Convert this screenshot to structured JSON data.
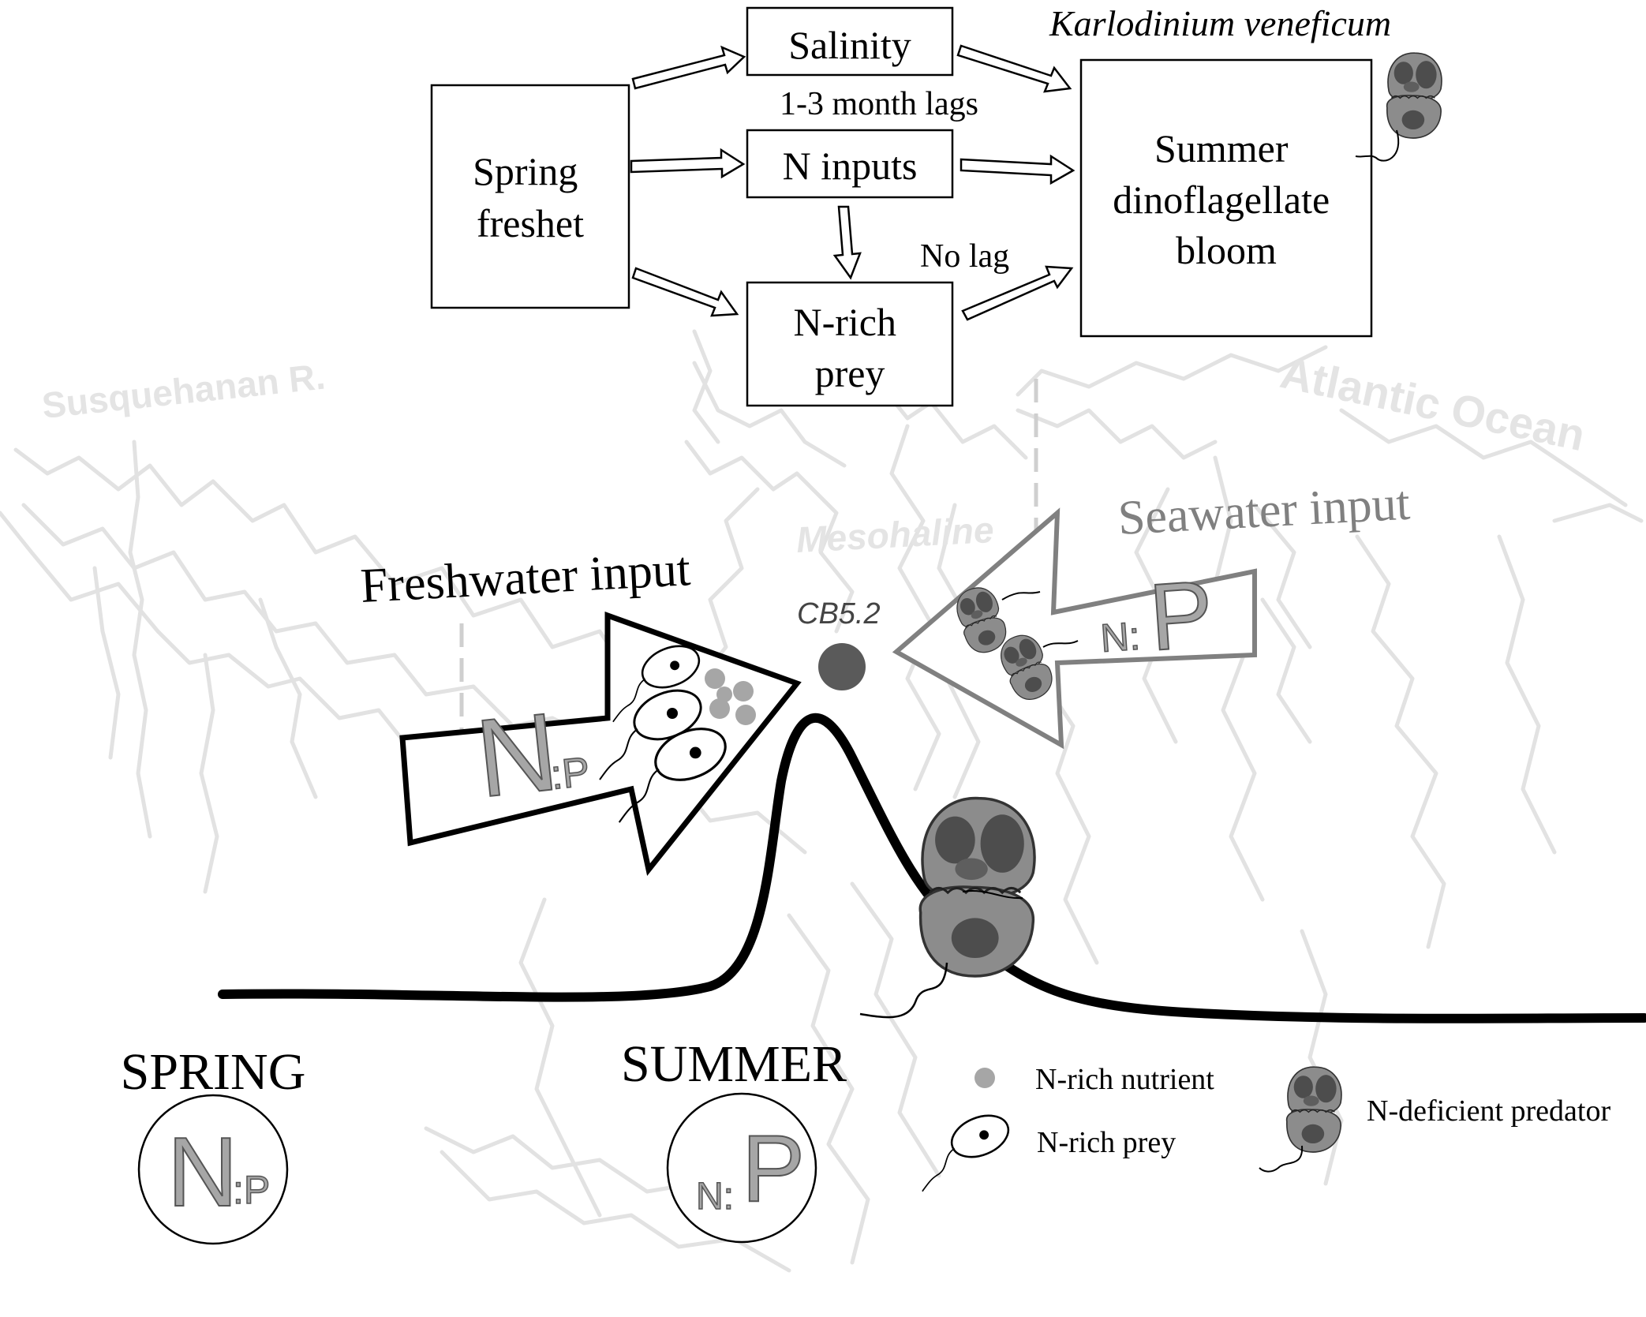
{
  "flow": {
    "spring_freshet": [
      "Spring",
      "freshet"
    ],
    "salinity": "Salinity",
    "n_inputs": "N inputs",
    "n_rich_prey": [
      "N-rich",
      "prey"
    ],
    "bloom": [
      "Summer",
      "dinoflagellate",
      "bloom"
    ],
    "species": "Karlodinium veneficum",
    "lag_long": "1-3 month lags",
    "lag_none": "No lag"
  },
  "map": {
    "river": "Susquehanan R.",
    "ocean": "Atlantic Ocean",
    "mesohaline": "Mesohaline",
    "station": "CB5.2",
    "freshwater": "Freshwater input",
    "seawater": "Seawater input",
    "np_big": "N",
    "np_small": ":P",
    "np_small_n": "N:",
    "np_big_p": "P"
  },
  "seasons": {
    "spring": "SPRING",
    "summer": "SUMMER"
  },
  "legend": {
    "nutrient": "N-rich nutrient",
    "prey": "N-rich prey",
    "predator": "N-deficient predator"
  },
  "colors": {
    "ink": "#000000",
    "gray_arrow": "#808080",
    "nutrient": "#a6a6a6",
    "map_outline": "#e4e4e4",
    "predator_body": "#8c8c8c",
    "predator_spot": "#4d4d4d"
  }
}
